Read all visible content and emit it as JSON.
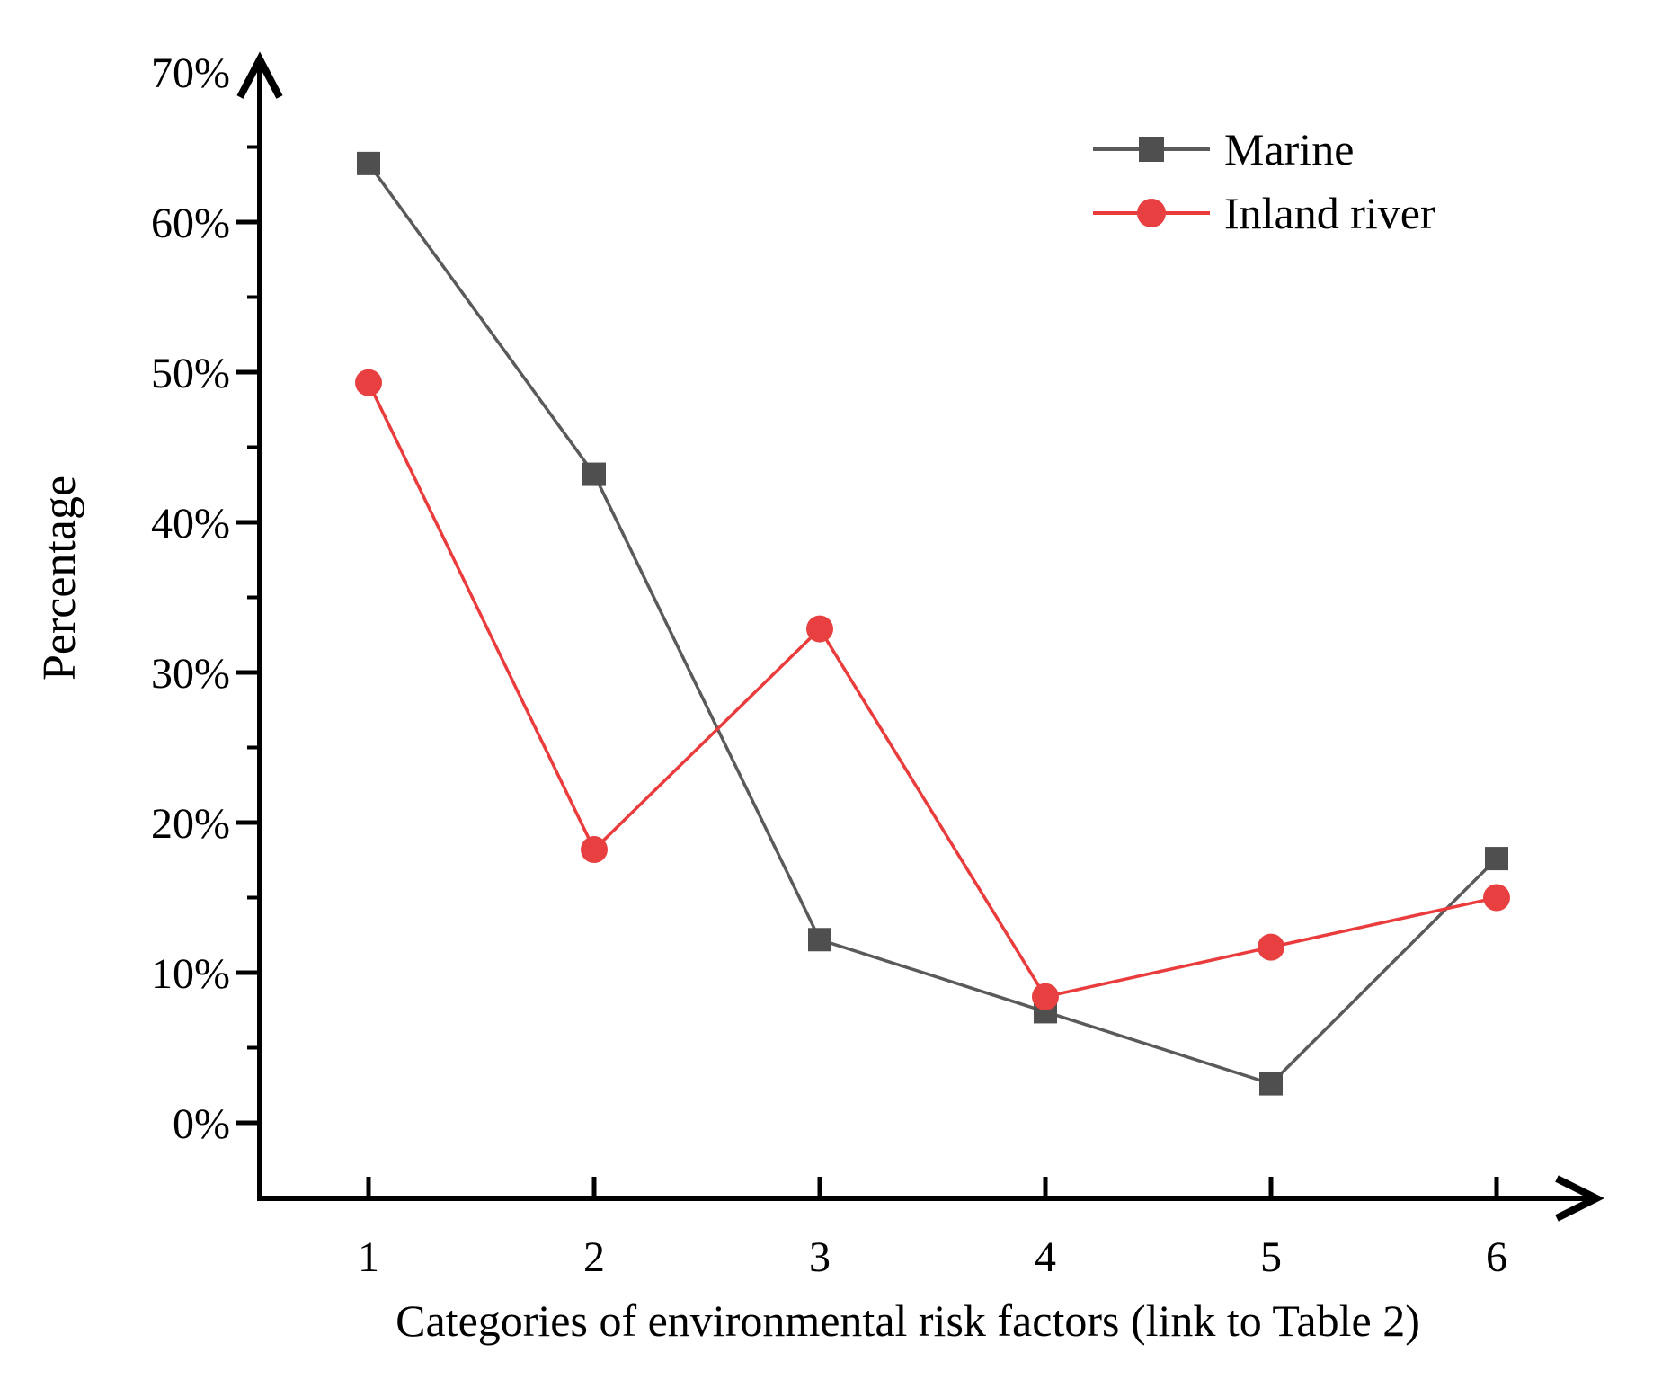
{
  "figure": {
    "background_color": "#ffffff",
    "axis_color": "#000000"
  },
  "chart_data": {
    "type": "line",
    "title": "",
    "xlabel": "Categories of environmental risk factors (link to Table 2)",
    "ylabel": "Percentage",
    "categories": [
      "1",
      "2",
      "3",
      "4",
      "5",
      "6"
    ],
    "series": [
      {
        "name": "Marine",
        "marker": "square",
        "line_color": "#5a5a5a",
        "marker_color": "#4f4f4f",
        "values": [
          63.9,
          43.2,
          12.2,
          7.4,
          2.6,
          17.6
        ]
      },
      {
        "name": "Inland river",
        "marker": "circle",
        "line_color": "#ea3c3c",
        "marker_color": "#e84040",
        "values": [
          49.3,
          18.2,
          32.9,
          8.4,
          11.7,
          15.0
        ]
      }
    ],
    "ylim": [
      0,
      70
    ],
    "y_major_step": 10,
    "y_minor_step": 5,
    "y_tick_labels": [
      "0%",
      "10%",
      "20%",
      "30%",
      "40%",
      "50%",
      "60%",
      "70%"
    ],
    "x_tick_labels": [
      "1",
      "2",
      "3",
      "4",
      "5",
      "6"
    ],
    "y_unit": "%",
    "grid": false,
    "legend_position": "top-right",
    "legend_entries": [
      "Marine",
      "Inland river"
    ]
  }
}
